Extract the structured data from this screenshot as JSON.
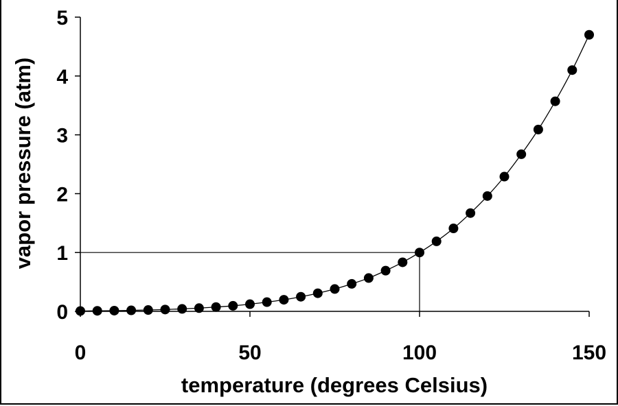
{
  "chart_data": {
    "type": "scatter",
    "xlabel": "temperature (degrees Celsius)",
    "ylabel": "vapor pressure (atm)",
    "xlim": [
      0,
      150
    ],
    "ylim": [
      0,
      5
    ],
    "x_ticks": [
      "0",
      "50",
      "100",
      "150"
    ],
    "y_ticks": [
      "0",
      "1",
      "2",
      "3",
      "4",
      "5"
    ],
    "grid": false,
    "legend": "none",
    "line": "smooth curve through points",
    "reference_lines": [
      {
        "from": [
          0,
          1
        ],
        "to": [
          100,
          1
        ]
      },
      {
        "from": [
          100,
          0
        ],
        "to": [
          100,
          1
        ]
      }
    ],
    "series": [
      {
        "x": [
          0,
          5,
          10,
          15,
          20,
          25,
          30,
          35,
          40,
          45,
          50,
          55,
          60,
          65,
          70,
          75,
          80,
          85,
          90,
          95,
          100,
          105,
          110,
          115,
          120,
          125,
          130,
          135,
          140,
          145,
          150
        ],
        "y": [
          0.006,
          0.009,
          0.012,
          0.017,
          0.023,
          0.031,
          0.042,
          0.055,
          0.073,
          0.094,
          0.122,
          0.157,
          0.197,
          0.248,
          0.308,
          0.38,
          0.467,
          0.566,
          0.692,
          0.834,
          1.0,
          1.19,
          1.41,
          1.67,
          1.96,
          2.29,
          2.67,
          3.09,
          3.57,
          4.1,
          4.7
        ]
      }
    ]
  }
}
